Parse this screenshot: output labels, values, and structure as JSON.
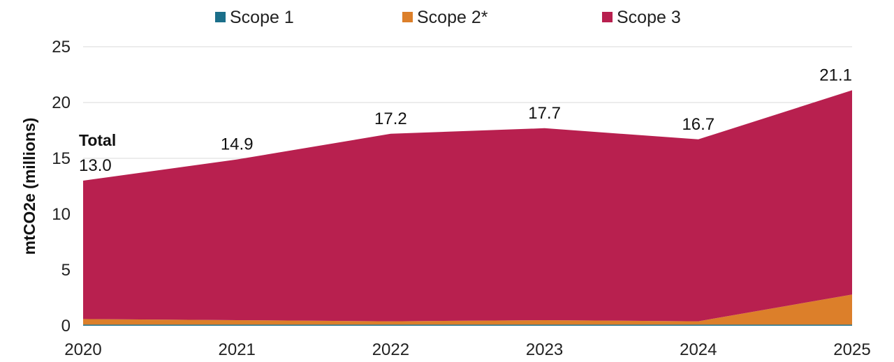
{
  "chart_data": {
    "type": "area",
    "stacked": true,
    "x": [
      "2020",
      "2021",
      "2022",
      "2023",
      "2024",
      "2025"
    ],
    "series": [
      {
        "name": "Scope 1",
        "color": "#1b6f8a",
        "values": [
          0.1,
          0.1,
          0.1,
          0.1,
          0.1,
          0.1
        ]
      },
      {
        "name": "Scope 2*",
        "color": "#dc7f2a",
        "values": [
          0.5,
          0.4,
          0.3,
          0.4,
          0.3,
          2.7
        ]
      },
      {
        "name": "Scope 3",
        "color": "#b8204f",
        "values": [
          12.4,
          14.4,
          16.8,
          17.2,
          16.3,
          18.3
        ]
      }
    ],
    "totals": [
      "13.0",
      "14.9",
      "17.2",
      "17.7",
      "16.7",
      "21.1"
    ],
    "total_label": "Total",
    "ylabel": "mtCO2e (millions)",
    "ylim": [
      0,
      25
    ],
    "yticks": [
      "0",
      "5",
      "10",
      "15",
      "20",
      "25"
    ],
    "grid": true,
    "legend_position": "top"
  }
}
